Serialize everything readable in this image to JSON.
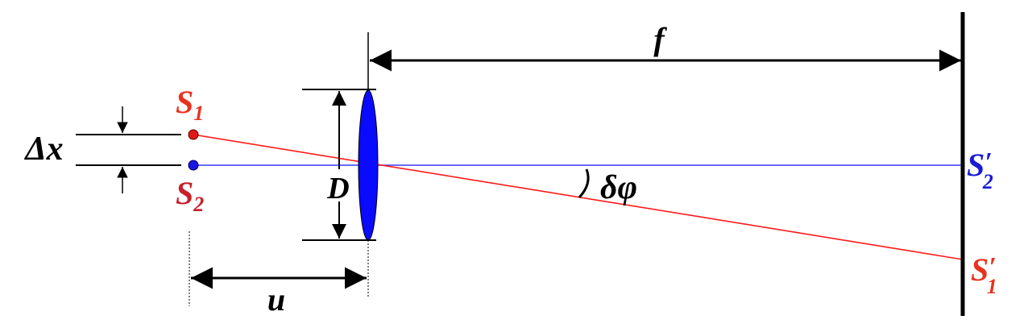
{
  "labels": {
    "source1": {
      "main": "S",
      "sub": "1"
    },
    "source2": {
      "main": "S",
      "sub": "2"
    },
    "image1": {
      "main": "S",
      "prime": "′",
      "sub": "1"
    },
    "image2": {
      "main": "S",
      "prime": "′",
      "sub": "2"
    },
    "separation": "Δx",
    "aperture": "D",
    "focal_length": "f",
    "object_distance": "u",
    "angle": "δφ"
  },
  "colors": {
    "ray_source1": "#ff1a1a",
    "ray_source2": "#3a3aff",
    "lens_fill": "#0a0aff",
    "label_source1": "#e8321e",
    "label_source2": "#c8202a",
    "label_image2": "#1a1ad8",
    "line": "#000000"
  }
}
